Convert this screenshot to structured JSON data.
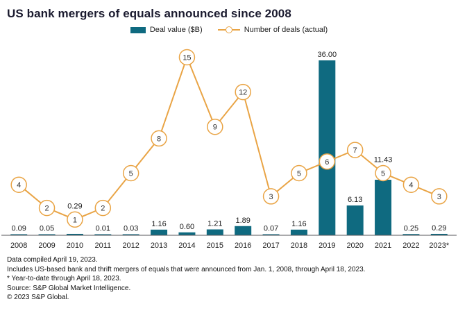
{
  "title": "US bank mergers of equals announced since 2008",
  "legend": {
    "bar_label": "Deal value ($B)",
    "line_label": "Number of deals (actual)"
  },
  "colors": {
    "bar": "#0f6a80",
    "line": "#e9a445",
    "axis": "#55565a",
    "text": "#1a1a1a"
  },
  "chart_data": {
    "type": "combo",
    "categories": [
      "2008",
      "2009",
      "2010",
      "2011",
      "2012",
      "2013",
      "2014",
      "2015",
      "2016",
      "2017",
      "2018",
      "2019",
      "2020",
      "2021",
      "2022",
      "2023*"
    ],
    "series": [
      {
        "name": "Deal value ($B)",
        "type": "bar",
        "values": [
          0.09,
          0.05,
          0.29,
          0.01,
          0.03,
          1.16,
          0.6,
          1.21,
          1.89,
          0.07,
          1.16,
          36.0,
          6.13,
          11.43,
          0.25,
          0.29
        ],
        "labels": [
          "0.09",
          "0.05",
          "0.29",
          "0.01",
          "0.03",
          "1.16",
          "0.60",
          "1.21",
          "1.89",
          "0.07",
          "1.16",
          "36.00",
          "6.13",
          "11.43",
          "0.25",
          "0.29"
        ]
      },
      {
        "name": "Number of deals (actual)",
        "type": "line",
        "values": [
          4,
          2,
          1,
          2,
          5,
          8,
          15,
          9,
          12,
          3,
          5,
          6,
          7,
          5,
          4,
          3
        ]
      }
    ],
    "bar_axis_max": 36,
    "line_axis_max": 15,
    "legend_position": "top",
    "grid": false
  },
  "footnotes": [
    "Data compiled April 19, 2023.",
    "Includes US-based bank and thrift mergers of equals that were announced from Jan. 1, 2008, through April 18, 2023.",
    "* Year-to-date through April 18, 2023.",
    "Source: S&P Global Market Intelligence.",
    "© 2023 S&P Global."
  ]
}
